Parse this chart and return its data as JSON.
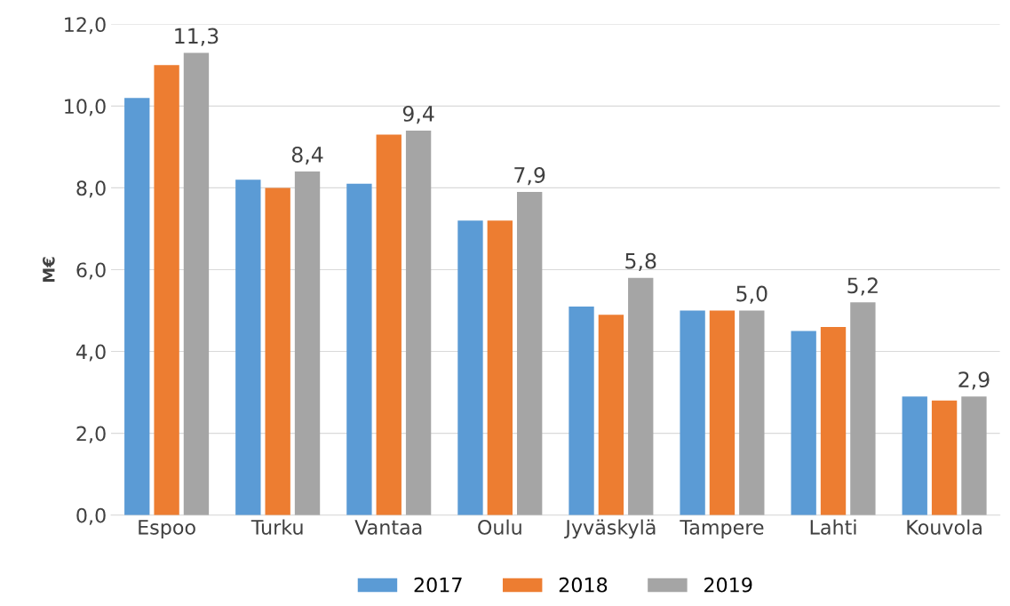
{
  "chart_data": {
    "type": "bar",
    "ylabel": "M€",
    "categories": [
      "Espoo",
      "Turku",
      "Vantaa",
      "Oulu",
      "Jyväskylä",
      "Tampere",
      "Lahti",
      "Kouvola"
    ],
    "series": [
      {
        "name": "2017",
        "color": "#5b9bd5",
        "values": [
          10.2,
          8.2,
          8.1,
          7.2,
          5.1,
          5.0,
          4.5,
          2.9
        ]
      },
      {
        "name": "2018",
        "color": "#ed7d31",
        "values": [
          11.0,
          8.0,
          9.3,
          7.2,
          4.9,
          5.0,
          4.6,
          2.8
        ]
      },
      {
        "name": "2019",
        "color": "#a5a5a5",
        "values": [
          11.3,
          8.4,
          9.4,
          7.9,
          5.8,
          5.0,
          5.2,
          2.9
        ],
        "value_labels": [
          "11,3",
          "8,4",
          "9,4",
          "7,9",
          "5,8",
          "5,0",
          "5,2",
          "2,9"
        ]
      }
    ],
    "ylim": [
      0,
      12
    ],
    "yticks": [
      {
        "value": 0,
        "label": "0,0"
      },
      {
        "value": 2,
        "label": "2,0"
      },
      {
        "value": 4,
        "label": "4,0"
      },
      {
        "value": 6,
        "label": "6,0"
      },
      {
        "value": 8,
        "label": "8,0"
      },
      {
        "value": 10,
        "label": "10,0"
      },
      {
        "value": 12,
        "label": "12,0"
      }
    ],
    "grid": "y",
    "legend": "bottom"
  }
}
